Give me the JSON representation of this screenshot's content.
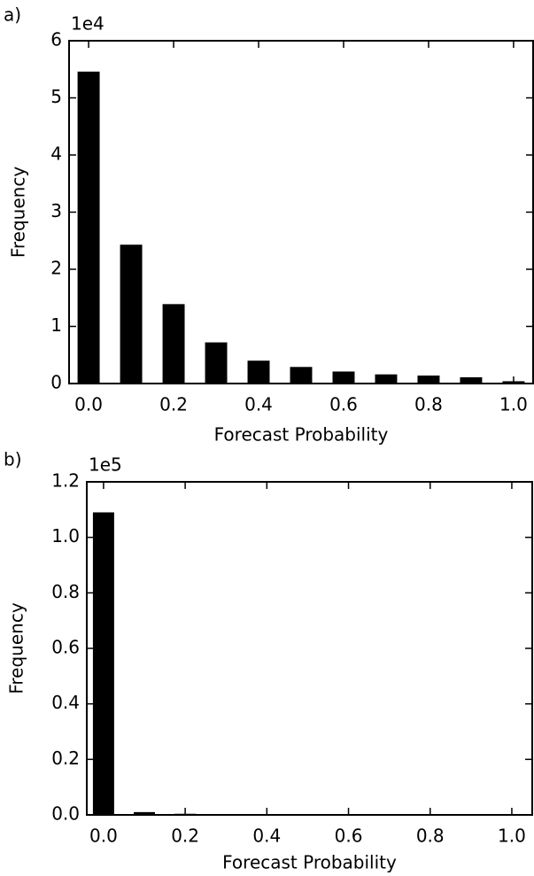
{
  "chart_data": [
    {
      "type": "bar",
      "panel_label": "a)",
      "offset_text": "1e4",
      "x_label": "Forecast Probability",
      "y_label": "Frequency",
      "color": "#000000",
      "x": [
        0.0,
        0.1,
        0.2,
        0.3,
        0.4,
        0.5,
        0.6,
        0.7,
        0.8,
        0.9,
        1.0
      ],
      "values": [
        5.46,
        2.43,
        1.39,
        0.72,
        0.4,
        0.29,
        0.21,
        0.16,
        0.14,
        0.11,
        0.04
      ],
      "xlim": [
        -0.046,
        1.046
      ],
      "ylim": [
        0,
        6
      ],
      "xticks": [
        {
          "value": 0,
          "label": "0.0"
        },
        0.2,
        0.4,
        0.6,
        0.8,
        {
          "value": 1,
          "label": "1.0"
        }
      ],
      "yticks": [
        0,
        1,
        2,
        3,
        4,
        5,
        6
      ]
    },
    {
      "type": "bar",
      "panel_label": "b)",
      "offset_text": "1e5",
      "x_label": "Forecast Probability",
      "y_label": "Frequency",
      "color": "#000000",
      "x": [
        0.0,
        0.1,
        0.2,
        0.3,
        0.4,
        0.5,
        0.6,
        0.7,
        0.8,
        0.9,
        1.0
      ],
      "values": [
        1.09,
        0.01,
        0.004,
        0.002,
        0.001,
        0.001,
        0.001,
        0.001,
        0.001,
        0.001,
        0.0005
      ],
      "xlim": [
        -0.041,
        1.05
      ],
      "ylim": [
        0,
        1.2
      ],
      "xticks": [
        {
          "value": 0,
          "label": "0.0"
        },
        0.2,
        0.4,
        0.6,
        0.8,
        {
          "value": 1,
          "label": "1.0"
        }
      ],
      "yticks": [
        {
          "value": 0,
          "label": "0.0"
        },
        0.2,
        0.4,
        0.6,
        0.8,
        {
          "value": 1,
          "label": "1.0"
        },
        1.2
      ]
    }
  ]
}
